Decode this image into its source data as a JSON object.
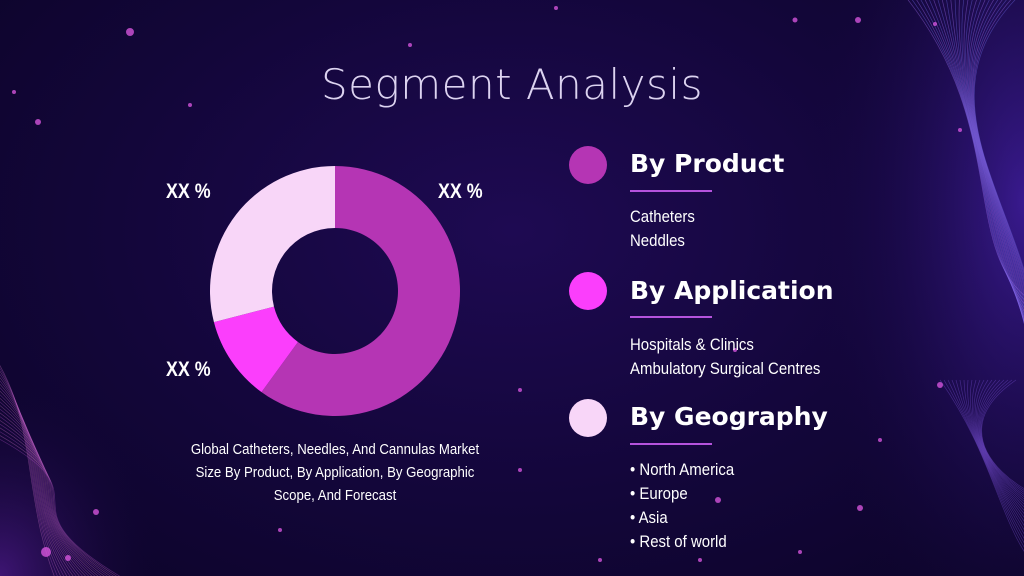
{
  "slide": {
    "title": "Segment Analysis",
    "caption": "Global Catheters, Needles, And Cannulas Market Size By Product, By Application, By Geographic Scope, And Forecast"
  },
  "segments": [
    {
      "heading": "By Product",
      "dot_color": "#b535b4",
      "items": [
        "Catheters",
        "Neddles"
      ]
    },
    {
      "heading": "By Application",
      "dot_color": "#fb3efc",
      "items": [
        "Hospitals & Clinics",
        "Ambulatory Surgical Centres"
      ]
    },
    {
      "heading": "By Geography",
      "dot_color": "#f8d6f8",
      "items": [
        "• North America",
        "• Europe",
        "• Asia",
        "• Rest of world"
      ]
    }
  ],
  "chart_data": {
    "type": "pie",
    "donut": true,
    "slices": [
      {
        "label": "XX %",
        "value": 60,
        "color": "#b535b4"
      },
      {
        "label": "XX %",
        "value": 11,
        "color": "#fb3efc"
      },
      {
        "label": "XX %",
        "value": 29,
        "color": "#f8d6f8"
      }
    ]
  }
}
